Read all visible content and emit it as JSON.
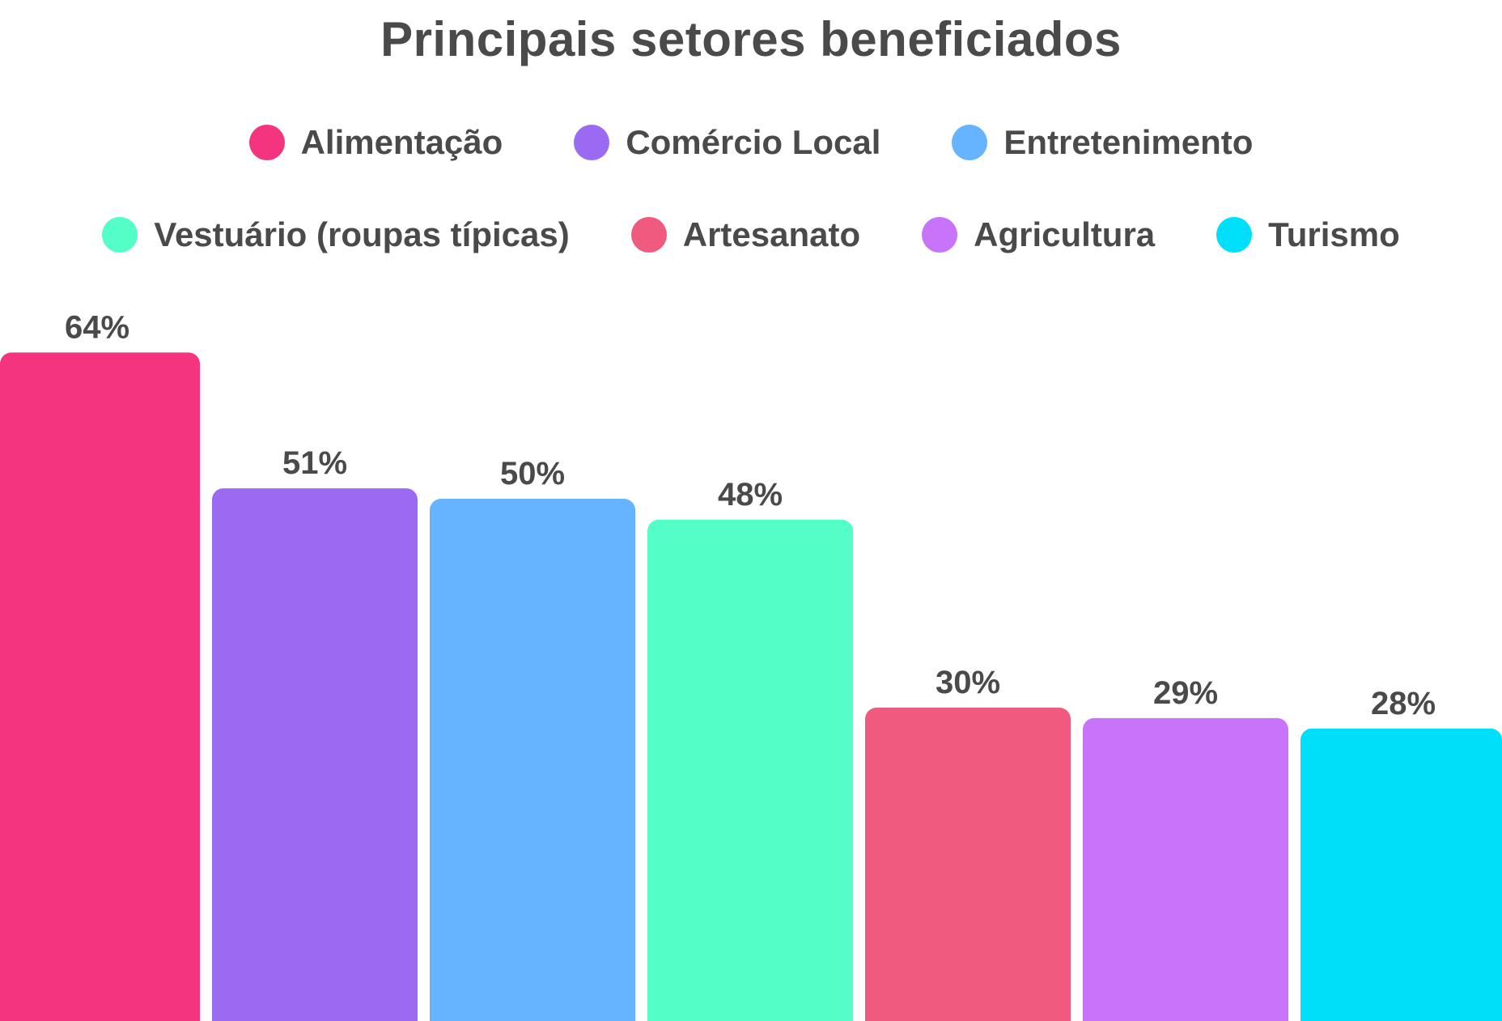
{
  "chart_data": {
    "type": "bar",
    "title": "Principais setores beneficiados",
    "categories": [
      "Alimentação",
      "Comércio Local",
      "Entretenimento",
      "Vestuário (roupas típicas)",
      "Artesanato",
      "Agricultura",
      "Turismo"
    ],
    "values": [
      64,
      51,
      50,
      48,
      30,
      29,
      28
    ],
    "value_labels": [
      "64%",
      "51%",
      "50%",
      "48%",
      "30%",
      "29%",
      "28%"
    ],
    "unit": "%",
    "colors": [
      "#f5347f",
      "#9b6af3",
      "#66b3ff",
      "#53ffc6",
      "#f05a7e",
      "#c774fa",
      "#00dffa"
    ],
    "legend": {
      "placement": "top",
      "rows": [
        [
          "Alimentação",
          "Comércio Local",
          "Entretenimento"
        ],
        [
          "Vestuário (roupas típicas)",
          "Artesanato",
          "Agricultura",
          "Turismo"
        ]
      ]
    },
    "xlabel": "",
    "ylabel": "",
    "axes_visible": false,
    "grid": false
  }
}
